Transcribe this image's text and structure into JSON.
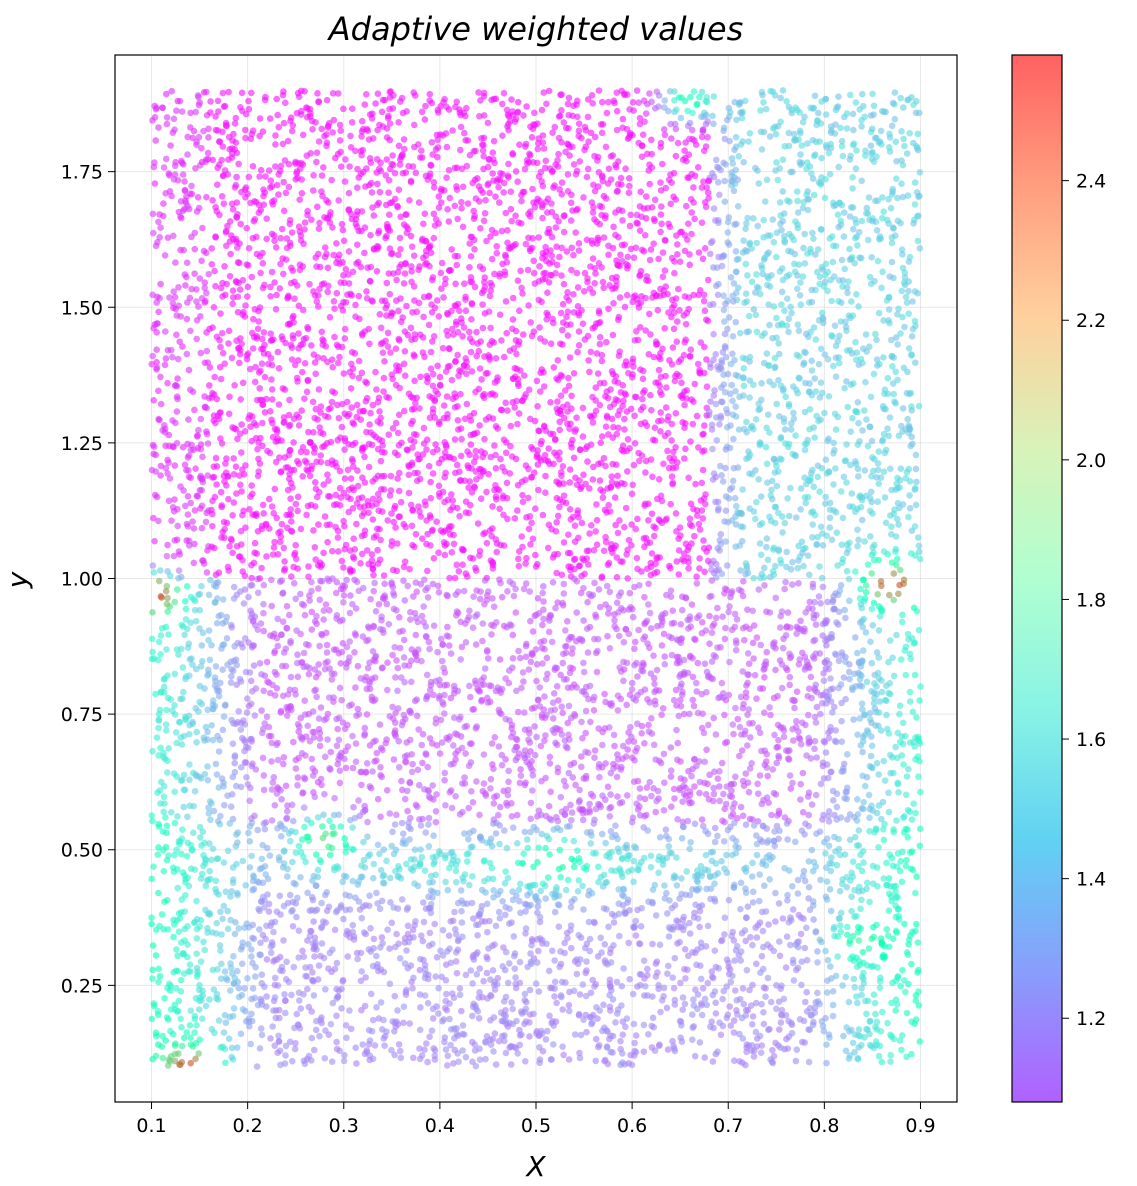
{
  "chart_data": {
    "type": "scatter",
    "title": "Adaptive weighted values",
    "xlabel": "X",
    "ylabel": "y",
    "xlim": [
      0.062,
      0.938
    ],
    "ylim": [
      0.035,
      1.965
    ],
    "xticks": [
      0.1,
      0.2,
      0.3,
      0.4,
      0.5,
      0.6,
      0.7,
      0.8,
      0.9
    ],
    "xtick_labels": [
      "0.1",
      "0.2",
      "0.3",
      "0.4",
      "0.5",
      "0.6",
      "0.7",
      "0.8",
      "0.9"
    ],
    "yticks": [
      0.25,
      0.5,
      0.75,
      1.0,
      1.25,
      1.5,
      1.75
    ],
    "ytick_labels": [
      "0.25",
      "0.50",
      "0.75",
      "1.00",
      "1.25",
      "1.50",
      "1.75"
    ],
    "grid": true,
    "colormap": "rainbow",
    "marker_alpha": 0.6,
    "colorbar": {
      "min": 1.08,
      "max": 2.58,
      "ticks": [
        1.2,
        1.4,
        1.6,
        1.8,
        2.0,
        2.2,
        2.4
      ],
      "tick_labels": [
        "1.2",
        "1.4",
        "1.6",
        "1.8",
        "2.0",
        "2.2",
        "2.4"
      ]
    },
    "point_count": 9000,
    "domain": {
      "x": [
        0.1,
        0.9
      ],
      "y": [
        0.1,
        1.9
      ]
    },
    "regions": [
      {
        "name": "upper-left",
        "x": [
          0.1,
          0.7
        ],
        "y": [
          1.0,
          1.9
        ],
        "typical_value": 1.1
      },
      {
        "name": "upper-right",
        "x": [
          0.7,
          0.9
        ],
        "y": [
          1.0,
          1.9
        ],
        "typical_value": 1.5
      },
      {
        "name": "lower-center",
        "x": [
          0.2,
          0.8
        ],
        "y": [
          0.1,
          1.0
        ],
        "typical_value": 1.3
      },
      {
        "name": "lower-left-edge",
        "x": [
          0.1,
          0.2
        ],
        "y": [
          0.1,
          1.0
        ],
        "typical_value": 1.75
      },
      {
        "name": "lower-right-edge",
        "x": [
          0.8,
          0.9
        ],
        "y": [
          0.1,
          1.0
        ],
        "typical_value": 1.7
      }
    ],
    "hotspots": [
      {
        "x": 0.1,
        "y": 0.97,
        "value": 2.5
      },
      {
        "x": 0.87,
        "y": 0.99,
        "value": 2.5
      },
      {
        "x": 0.14,
        "y": 0.1,
        "value": 2.45
      },
      {
        "x": 0.28,
        "y": 0.52,
        "value": 2.1
      },
      {
        "x": 0.52,
        "y": 0.48,
        "value": 1.9
      },
      {
        "x": 0.84,
        "y": 0.33,
        "value": 1.95
      },
      {
        "x": 0.66,
        "y": 1.88,
        "value": 1.85
      }
    ]
  }
}
